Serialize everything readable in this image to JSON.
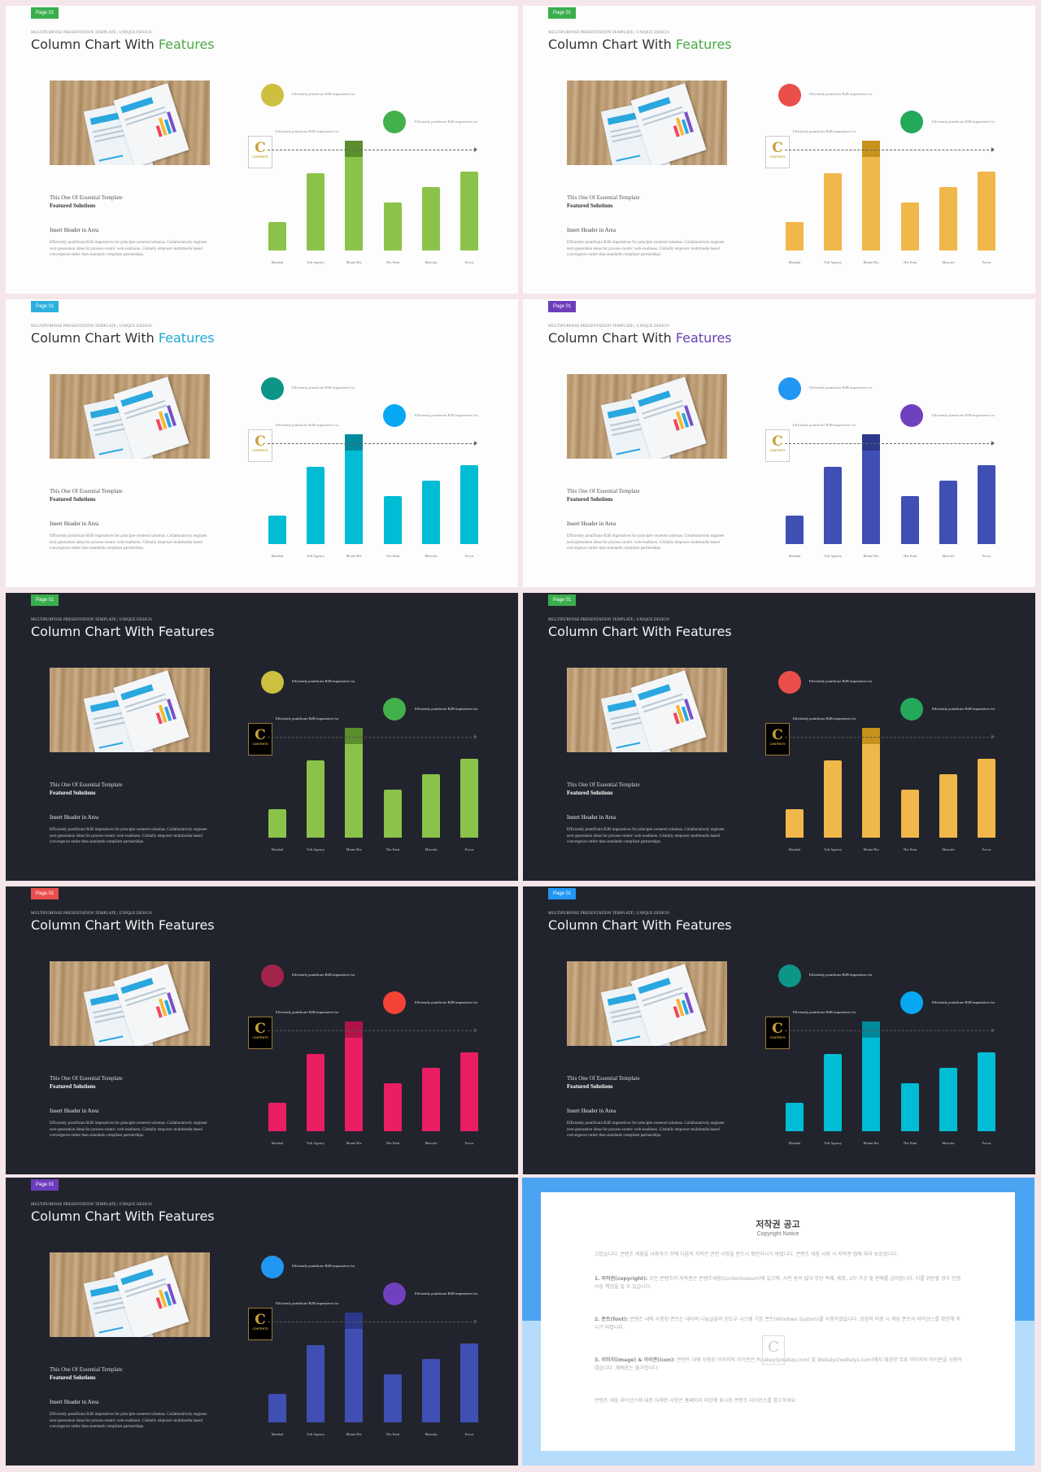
{
  "common": {
    "page_tag": "Page 01",
    "subtitle": "MULTIPURPOSE PRESENTATION TEMPLATE | UNIQUE DESIGN",
    "title_prefix": "Column Chart With ",
    "title_accent": "Features",
    "template_line1": "This One Of Essential Template",
    "template_line2": "Featured Solutions",
    "insert_header": "Insert Header  in Area",
    "body_text": "Efficiently pontificate B2B imperatives for principle-centered schemas. Collaboratively engineer next-generation ideas for process-centric web-readiness. Globally empower multimedia based convergence rather than standards compliant partnerships.",
    "note_text": "Efficiently pontificate B2B imperatives for",
    "badge_letter": "C",
    "badge_text": "CONTENTS"
  },
  "chart_data": {
    "type": "bar",
    "categories": [
      "Marshal",
      "Volt Agency",
      "Monte Biz",
      "The Kent",
      "Marcula",
      "Focus"
    ],
    "values": [
      20,
      55,
      78,
      34,
      45,
      56
    ],
    "ylim": [
      0,
      80
    ],
    "highlight_index": 2,
    "reference_line": "dashed arrow at top of tallest bar"
  },
  "slides": [
    {
      "theme": "light",
      "tag_color": "#3aae4c",
      "accent": "#4ca948",
      "bar": "#8bc34a",
      "bar_cap": "#5b8e2c",
      "circle1": "#cdbf3f",
      "circle2": "#43b14b"
    },
    {
      "theme": "light",
      "tag_color": "#3aae4c",
      "accent": "#4ca948",
      "bar": "#f0b84a",
      "bar_cap": "#c8911a",
      "circle1": "#ea4f4b",
      "circle2": "#24a85a"
    },
    {
      "theme": "light",
      "tag_color": "#2cb0df",
      "accent": "#1ea9d8",
      "bar": "#00bcd4",
      "bar_cap": "#00899c",
      "circle1": "#0d9588",
      "circle2": "#06a8f3"
    },
    {
      "theme": "light",
      "tag_color": "#6c3dbb",
      "accent": "#6a40b5",
      "bar": "#3f4fb4",
      "bar_cap": "#2c388a",
      "circle1": "#2196f3",
      "circle2": "#7041bf"
    },
    {
      "theme": "dark",
      "tag_color": "#3aae4c",
      "accent": "#f2f2f2",
      "bar": "#8bc34a",
      "bar_cap": "#5b8e2c",
      "circle1": "#cdbf3f",
      "circle2": "#43b14b"
    },
    {
      "theme": "dark",
      "tag_color": "#3aae4c",
      "accent": "#f2f2f2",
      "bar": "#f0b84a",
      "bar_cap": "#c8911a",
      "circle1": "#ea4f4b",
      "circle2": "#24a85a"
    },
    {
      "theme": "dark",
      "tag_color": "#ea4f4b",
      "accent": "#f2f2f2",
      "bar": "#e91e63",
      "bar_cap": "#b0134a",
      "circle1": "#a3244b",
      "circle2": "#f44336"
    },
    {
      "theme": "dark",
      "tag_color": "#2196f3",
      "accent": "#f2f2f2",
      "bar": "#00bcd4",
      "bar_cap": "#00899c",
      "circle1": "#0d9588",
      "circle2": "#06a8f3"
    },
    {
      "theme": "dark",
      "tag_color": "#6c3dbb",
      "accent": "#f2f2f2",
      "bar": "#3f4fb4",
      "bar_cap": "#2c388a",
      "circle1": "#2196f3",
      "circle2": "#7041bf"
    }
  ],
  "copyright": {
    "title": "저작권 공고",
    "subtitle": "Copyright Notice",
    "intro": "고맙습니다. 콘텐츠 세움을 사용하기 전에 다음의 저작권 관련 사항을 반드시 확인하시기 바랍니다. 콘텐츠 세움 사용 시 저작권 법에 따라 보호됩니다.",
    "p1_head": "1. 저작권(copyright):",
    "p1_body": "모든 콘텐츠의 저작권은 콘텐츠세움(Contentsseum)에 있으며, 사전 동의 없이 무단 복제, 배포, 2차 가공 및 판매를 금지합니다. 이를 위반할 경우 민형사상 책임을 질 수 있습니다.",
    "p2_head": "2. 폰트(font):",
    "p2_body": "콘텐츠 내에 사용된 폰트는 네이버 나눔글꼴과 윈도우 시스템 기본 폰트(Windows System)를 사용하였습니다. 상업적 이용 시 해당 폰트의 라이선스를 확인해 주시기 바랍니다.",
    "p3_head": "3. 이미지(image) & 아이콘(icon):",
    "p3_body": "콘텐츠 내에 사용된 이미지와 아이콘은 Pixabay(pixabay.com) 및 Webalys(webalys.com)에서 제공한 무료 이미지와 아이콘을 사용하였습니다. 재배포는 불가합니다.",
    "outro": "콘텐츠 세움 라이선스에 대한 자세한 사항은 홈페이지 하단에 표시된 콘텐츠 라이선스를 참고하세요."
  }
}
